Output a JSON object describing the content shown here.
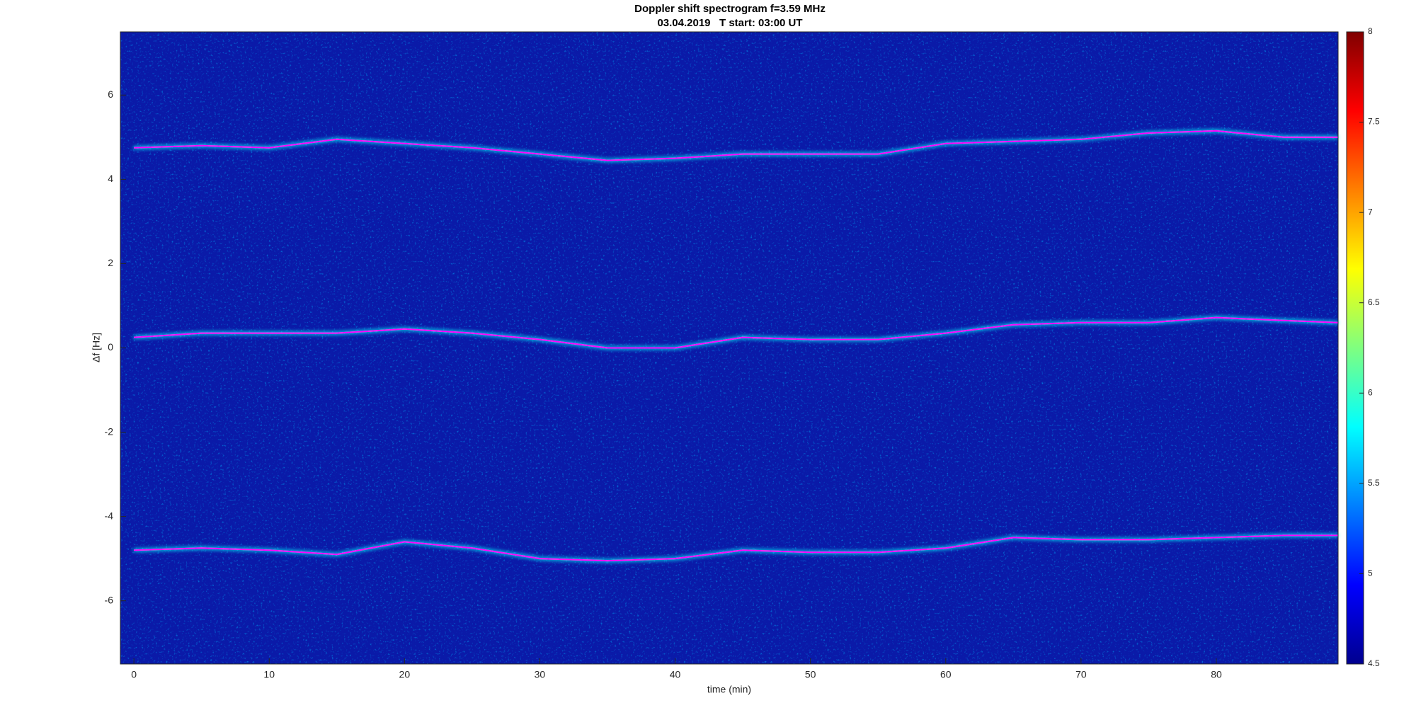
{
  "chart_data": {
    "type": "spectrogram",
    "title": "Doppler shift spectrogram f=3.59 MHz",
    "subtitle": "03.04.2019   T start: 03:00 UT",
    "x_label": "time (min)",
    "y_label": "Δf [Hz]",
    "x": [
      0,
      5,
      10,
      15,
      20,
      25,
      30,
      35,
      40,
      45,
      50,
      55,
      60,
      65,
      70,
      75,
      80,
      85,
      89
    ],
    "series": [
      {
        "color": "#ff00ff",
        "values": [
          4.75,
          4.8,
          4.75,
          4.95,
          4.85,
          4.75,
          4.6,
          4.45,
          4.5,
          4.6,
          4.6,
          4.6,
          4.85,
          4.9,
          4.95,
          5.1,
          5.15,
          5.0,
          5.0
        ]
      },
      {
        "color": "#ff00ff",
        "values": [
          0.25,
          0.35,
          0.35,
          0.35,
          0.45,
          0.35,
          0.2,
          0.0,
          0.0,
          0.25,
          0.2,
          0.2,
          0.35,
          0.55,
          0.6,
          0.6,
          0.72,
          0.65,
          0.6
        ]
      },
      {
        "color": "#ff00ff",
        "values": [
          -4.8,
          -4.75,
          -4.8,
          -4.9,
          -4.6,
          -4.75,
          -5.0,
          -5.05,
          -5.0,
          -4.8,
          -4.85,
          -4.85,
          -4.75,
          -4.5,
          -4.55,
          -4.55,
          -4.5,
          -4.45,
          -4.45
        ]
      }
    ],
    "xlim": [
      -1,
      89
    ],
    "xticks": [
      0,
      10,
      20,
      30,
      40,
      50,
      60,
      70,
      80
    ],
    "ylim": [
      -7.5,
      7.5
    ],
    "yticks": [
      -6,
      -4,
      -2,
      0,
      2,
      4,
      6
    ],
    "colorbar": {
      "lim": [
        4.5,
        8
      ],
      "ticks": [
        4.5,
        5,
        5.5,
        6,
        6.5,
        7,
        7.5,
        8
      ]
    },
    "grid": false
  }
}
